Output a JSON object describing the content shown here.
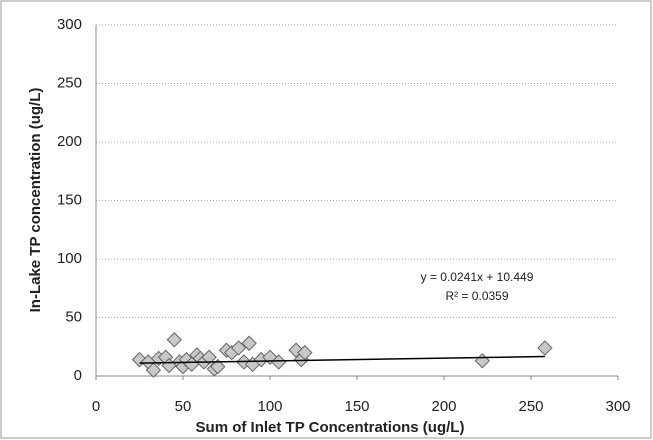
{
  "chart_data": {
    "type": "scatter",
    "x_label": "Sum of Inlet TP Concentrations (ug/L)",
    "y_label": "In-Lake TP concentration (ug/L)",
    "x": [
      25,
      30,
      33,
      36,
      40,
      42,
      45,
      48,
      50,
      52,
      55,
      58,
      60,
      62,
      65,
      68,
      70,
      75,
      78,
      82,
      85,
      88,
      90,
      95,
      100,
      105,
      115,
      118,
      120,
      222,
      258
    ],
    "values": [
      14,
      12,
      5,
      15,
      16,
      9,
      31,
      12,
      8,
      14,
      10,
      18,
      15,
      12,
      16,
      6,
      8,
      22,
      20,
      24,
      12,
      28,
      10,
      14,
      16,
      12,
      22,
      14,
      20,
      13,
      24
    ],
    "color": "#c8c8c8",
    "xlim": [
      0,
      300
    ],
    "xticks": [
      0,
      50,
      100,
      150,
      200,
      250,
      300
    ],
    "ylim": [
      0,
      300
    ],
    "yticks": [
      0,
      50,
      100,
      150,
      200,
      250,
      300
    ],
    "grid": true,
    "trendline": {
      "slope": 0.0241,
      "intercept": 10.449,
      "label": "y = 0.0241x + 10.449",
      "r2_label": "R² = 0.0359"
    }
  }
}
